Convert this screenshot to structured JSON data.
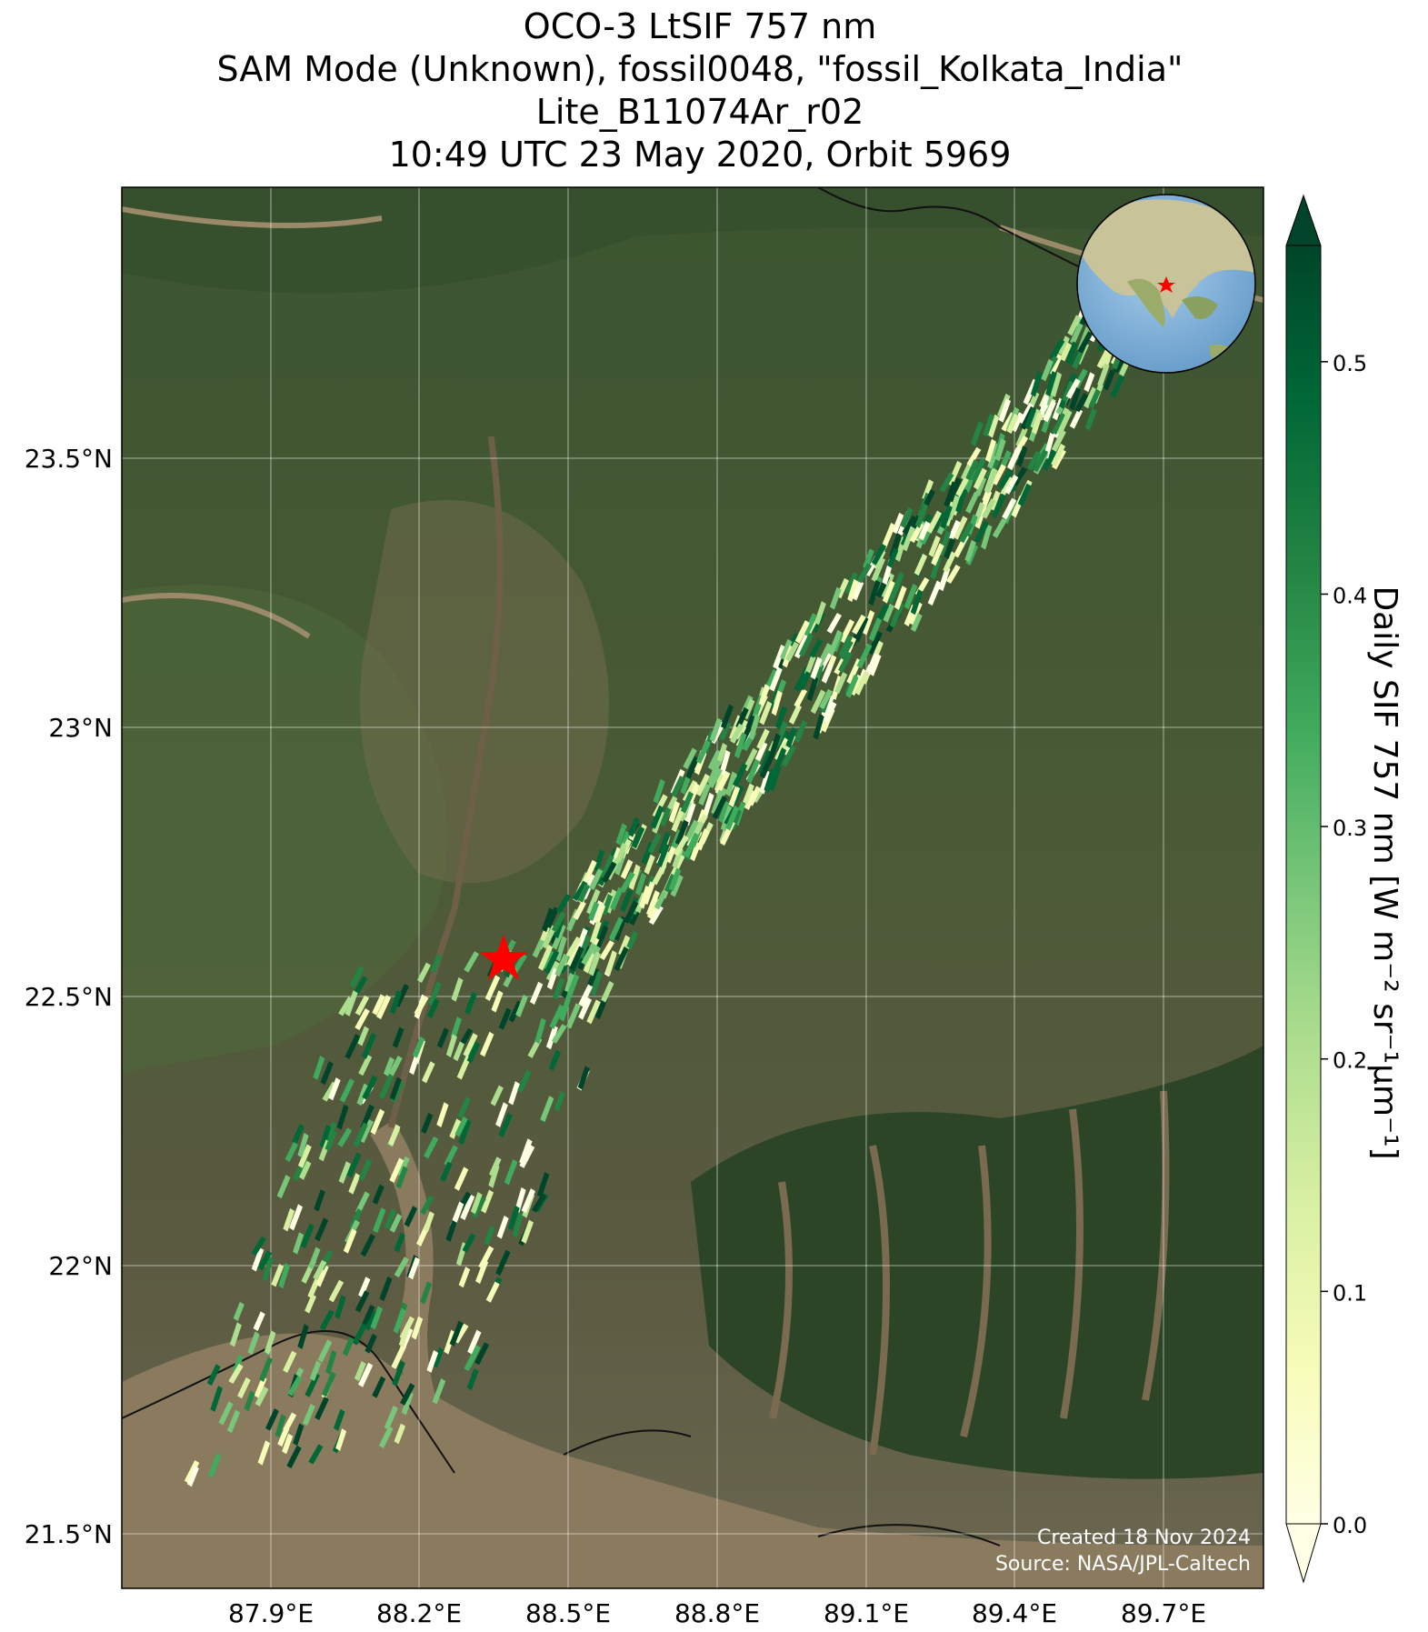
{
  "title": {
    "line1": "OCO-3 LtSIF 757 nm",
    "line2": "SAM Mode (Unknown), fossil0048, \"fossil_Kolkata_India\"",
    "line3": "Lite_B11074Ar_r02",
    "line4": "10:49 UTC 23 May 2020, Orbit 5969"
  },
  "map": {
    "lon_ticks": [
      "87.9°E",
      "88.2°E",
      "88.5°E",
      "88.8°E",
      "89.1°E",
      "89.4°E",
      "89.7°E"
    ],
    "lat_ticks": [
      "23.5°N",
      "23°N",
      "22.5°N",
      "22°N",
      "21.5°N"
    ],
    "target_marker": "star-icon",
    "target_color": "#ff0000",
    "land_color": "#3f5a33",
    "water_color": "#8a7a5e",
    "inset": "globe-inset-icon"
  },
  "colorbar": {
    "label": "Daily SIF 757 nm [W m⁻² sr⁻¹μm⁻¹]",
    "ticks": [
      "0.0",
      "0.1",
      "0.2",
      "0.3",
      "0.4",
      "0.5"
    ],
    "colormap": "YlGn",
    "min": 0.0,
    "max": 0.55
  },
  "footer": {
    "created": "Created 18 Nov 2024",
    "source": "Source: NASA/JPL-Caltech"
  }
}
